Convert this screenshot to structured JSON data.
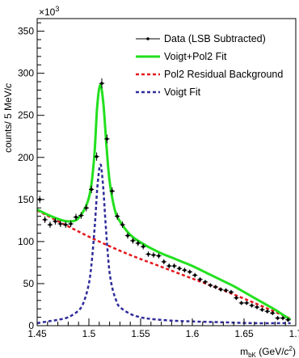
{
  "chart_data": {
    "type": "line",
    "xlabel": "m_{bK} (GeV/c^{2})",
    "xlabel_parts": [
      "m",
      "bK",
      " (GeV/",
      "c",
      "2",
      ")"
    ],
    "ylabel": "counts/ 5 MeV/c",
    "ylabel_parts": [
      "counts/ 5 MeV/",
      "c"
    ],
    "y_multiplier": "×10",
    "y_multiplier_exp": "3",
    "xlim": [
      1.45,
      1.7
    ],
    "ylim": [
      0,
      365
    ],
    "y_unit_scale": 1000,
    "x_ticks": [
      1.45,
      1.5,
      1.55,
      1.6,
      1.65,
      1.7
    ],
    "x_tick_labels": [
      "1.45",
      "1.5",
      "1.55",
      "1.6",
      "1.65",
      "1.7"
    ],
    "y_ticks": [
      0,
      50,
      100,
      150,
      200,
      250,
      300,
      350
    ],
    "y_tick_labels": [
      "0",
      "50",
      "100",
      "150",
      "200",
      "250",
      "300",
      "350"
    ],
    "legend_position": "top-right",
    "grid": false,
    "series": [
      {
        "name": "Data (LSB Subtracted)",
        "style": "points-with-errors",
        "color": "#000000",
        "x": [
          1.4525,
          1.4575,
          1.4625,
          1.4675,
          1.4725,
          1.4775,
          1.4825,
          1.4875,
          1.4925,
          1.4975,
          1.5025,
          1.5075,
          1.5125,
          1.5175,
          1.5225,
          1.5275,
          1.5325,
          1.5375,
          1.5425,
          1.5475,
          1.5525,
          1.5575,
          1.5625,
          1.5675,
          1.5725,
          1.5775,
          1.5825,
          1.5875,
          1.5925,
          1.5975,
          1.6025,
          1.6075,
          1.6125,
          1.6175,
          1.6225,
          1.6275,
          1.6325,
          1.6375,
          1.6425,
          1.6475,
          1.6525,
          1.6575,
          1.6625,
          1.6675,
          1.6725,
          1.6775,
          1.6825,
          1.6875,
          1.6925
        ],
        "y": [
          150,
          126,
          120,
          124,
          121,
          120,
          121,
          129,
          131,
          140,
          162,
          201,
          288,
          222,
          160,
          130,
          120,
          107,
          101,
          98,
          94,
          85,
          84,
          83,
          76,
          71,
          71,
          68,
          66,
          64,
          60,
          55,
          52,
          48,
          46,
          43,
          42,
          40,
          33,
          27,
          27,
          24,
          22,
          19,
          17,
          15,
          9,
          9,
          7
        ]
      },
      {
        "name": "Voigt+Pol2 Fit",
        "style": "solid",
        "color": "#22e01e",
        "x": [
          1.45,
          1.46,
          1.47,
          1.48,
          1.49,
          1.5,
          1.505,
          1.508,
          1.511,
          1.514,
          1.517,
          1.52,
          1.525,
          1.53,
          1.54,
          1.55,
          1.56,
          1.57,
          1.58,
          1.59,
          1.6,
          1.61,
          1.62,
          1.63,
          1.64,
          1.65,
          1.66,
          1.67,
          1.68,
          1.69,
          1.695
        ],
        "y": [
          138,
          132,
          127,
          124,
          128,
          152,
          198,
          260,
          286,
          264,
          214,
          172,
          138,
          124,
          108,
          99,
          92,
          86,
          81,
          76,
          71,
          65,
          59,
          53,
          47,
          40,
          33,
          26,
          19,
          11,
          7
        ]
      },
      {
        "name": "Pol2 Residual Background",
        "style": "dashed",
        "color": "#e4161b",
        "x": [
          1.45,
          1.48,
          1.51,
          1.54,
          1.57,
          1.6,
          1.63,
          1.66,
          1.69,
          1.695
        ],
        "y": [
          137,
          118,
          100,
          84,
          70,
          56,
          42,
          27,
          11,
          8
        ]
      },
      {
        "name": "Voigt Fit",
        "style": "dashed",
        "color": "#2f2c9a",
        "x": [
          1.45,
          1.46,
          1.47,
          1.48,
          1.49,
          1.495,
          1.5,
          1.503,
          1.506,
          1.508,
          1.51,
          1.511,
          1.512,
          1.514,
          1.516,
          1.518,
          1.52,
          1.523,
          1.527,
          1.53,
          1.54,
          1.55,
          1.56,
          1.58,
          1.6,
          1.63,
          1.66,
          1.69,
          1.695
        ],
        "y": [
          3,
          5,
          7,
          10,
          18,
          28,
          50,
          79,
          124,
          162,
          186,
          191,
          188,
          162,
          124,
          90,
          63,
          43,
          28,
          22,
          14,
          10,
          8,
          6,
          5,
          4,
          3,
          3,
          3
        ]
      }
    ]
  },
  "colors": {
    "data": "#000000",
    "total_fit": "#22e01e",
    "background": "#e4161b",
    "signal": "#2f2c9a"
  }
}
